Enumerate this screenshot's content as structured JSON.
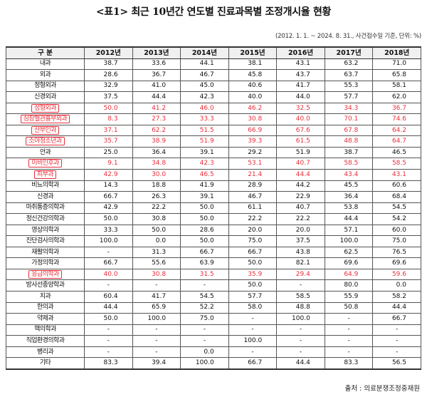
{
  "title": "<표1> 최근 10년간 연도별 진료과목별 조정개시율 현황",
  "subtitle": "(2012. 1. 1. ~ 2024. 8. 31., 사건접수일 기준, 단위: %)",
  "source": "출처 : 의료분쟁조정중재원",
  "headers": [
    "구 분",
    "2012년",
    "2013년",
    "2014년",
    "2015년",
    "2016년",
    "2017년",
    "2018년"
  ],
  "highlight_color": "#e8303c",
  "rows": [
    {
      "name": "내과",
      "values": [
        "38.7",
        "33.6",
        "44.1",
        "38.1",
        "43.1",
        "63.2",
        "71.0"
      ],
      "hl": false
    },
    {
      "name": "외과",
      "values": [
        "28.6",
        "36.7",
        "46.7",
        "45.8",
        "43.7",
        "63.7",
        "65.8"
      ],
      "hl": false
    },
    {
      "name": "정형외과",
      "values": [
        "32.9",
        "41.0",
        "45.0",
        "40.6",
        "41.7",
        "55.3",
        "58.1"
      ],
      "hl": false
    },
    {
      "name": "신경외과",
      "values": [
        "37.5",
        "44.4",
        "42.3",
        "40.0",
        "44.0",
        "57.7",
        "62.0"
      ],
      "hl": false
    },
    {
      "name": "성형외과",
      "values": [
        "50.0",
        "41.2",
        "46.0",
        "46.2",
        "32.5",
        "34.3",
        "36.7"
      ],
      "hl": true
    },
    {
      "name": "심장혈관흉부외과",
      "values": [
        "8.3",
        "27.3",
        "33.3",
        "30.8",
        "40.0",
        "70.1",
        "74.6"
      ],
      "hl": true
    },
    {
      "name": "산부인과",
      "values": [
        "37.1",
        "62.2",
        "51.5",
        "66.9",
        "67.6",
        "67.8",
        "64.2"
      ],
      "hl": true
    },
    {
      "name": "소아청소년과",
      "values": [
        "35.7",
        "38.9",
        "51.9",
        "39.3",
        "61.5",
        "48.8",
        "64.7"
      ],
      "hl": true
    },
    {
      "name": "안과",
      "values": [
        "25.0",
        "36.4",
        "39.1",
        "29.2",
        "51.9",
        "38.7",
        "46.5"
      ],
      "hl": false
    },
    {
      "name": "이비인후과",
      "values": [
        "9.1",
        "34.8",
        "42.3",
        "53.1",
        "40.7",
        "58.5",
        "58.5"
      ],
      "hl": true
    },
    {
      "name": "피부과",
      "values": [
        "42.9",
        "30.0",
        "46.5",
        "21.4",
        "44.4",
        "43.4",
        "43.1"
      ],
      "hl": true
    },
    {
      "name": "비뇨의학과",
      "values": [
        "14.3",
        "18.8",
        "41.9",
        "28.9",
        "44.2",
        "45.5",
        "60.6"
      ],
      "hl": false
    },
    {
      "name": "신경과",
      "values": [
        "66.7",
        "26.3",
        "39.1",
        "46.7",
        "22.9",
        "36.4",
        "68.4"
      ],
      "hl": false
    },
    {
      "name": "마취통증의학과",
      "values": [
        "42.9",
        "22.2",
        "50.0",
        "61.1",
        "40.7",
        "53.8",
        "54.5"
      ],
      "hl": false
    },
    {
      "name": "정신건강의학과",
      "values": [
        "50.0",
        "30.8",
        "50.0",
        "22.2",
        "22.2",
        "44.4",
        "54.2"
      ],
      "hl": false
    },
    {
      "name": "영상의학과",
      "values": [
        "33.3",
        "50.0",
        "28.6",
        "20.0",
        "20.0",
        "57.1",
        "60.0"
      ],
      "hl": false
    },
    {
      "name": "진단검사의학과",
      "values": [
        "100.0",
        "0.0",
        "50.0",
        "75.0",
        "37.5",
        "100.0",
        "75.0"
      ],
      "hl": false
    },
    {
      "name": "재활의학과",
      "values": [
        "-",
        "31.3",
        "66.7",
        "66.7",
        "43.8",
        "62.5",
        "76.5"
      ],
      "hl": false
    },
    {
      "name": "가정의학과",
      "values": [
        "66.7",
        "55.6",
        "63.9",
        "50.0",
        "82.1",
        "69.6",
        "69.6"
      ],
      "hl": false
    },
    {
      "name": "응급의학과",
      "values": [
        "40.0",
        "30.8",
        "31.5",
        "35.9",
        "29.4",
        "64.9",
        "59.6"
      ],
      "hl": true
    },
    {
      "name": "방사선종양학과",
      "values": [
        "-",
        "-",
        "-",
        "50.0",
        "-",
        "80.0",
        "0.0"
      ],
      "hl": false
    },
    {
      "name": "치과",
      "values": [
        "60.4",
        "41.7",
        "54.5",
        "57.7",
        "58.5",
        "55.9",
        "58.2"
      ],
      "hl": false
    },
    {
      "name": "한의과",
      "values": [
        "44.4",
        "65.9",
        "52.2",
        "58.0",
        "48.8",
        "50.8",
        "44.4"
      ],
      "hl": false
    },
    {
      "name": "약제과",
      "values": [
        "50.0",
        "100.0",
        "75.0",
        "-",
        "100.0",
        "-",
        "66.7"
      ],
      "hl": false
    },
    {
      "name": "핵의학과",
      "values": [
        "-",
        "-",
        "-",
        "-",
        "-",
        "-",
        "-"
      ],
      "hl": false
    },
    {
      "name": "직업환경의학과",
      "values": [
        "-",
        "-",
        "-",
        "100.0",
        "-",
        "-",
        "-"
      ],
      "hl": false
    },
    {
      "name": "병리과",
      "values": [
        "-",
        "-",
        "0.0",
        "-",
        "-",
        "-",
        "-"
      ],
      "hl": false
    },
    {
      "name": "기타",
      "values": [
        "83.3",
        "39.4",
        "100.0",
        "66.7",
        "44.4",
        "83.3",
        "56.5"
      ],
      "hl": false
    }
  ]
}
